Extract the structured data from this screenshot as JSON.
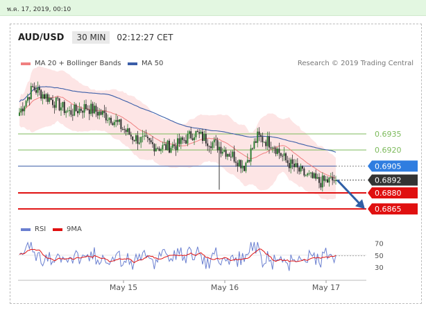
{
  "date_bar": {
    "text": "พ.ค. 17, 2019, 00:10"
  },
  "header": {
    "pair": "AUD/USD",
    "timeframe": "30 MIN",
    "time": "02:12:27 CET"
  },
  "legend": {
    "ma20": "MA 20 + Bollinger Bands",
    "ma50": "MA 50",
    "research": "Research © 2019 Trading Central"
  },
  "rsi_legend": {
    "rsi": "RSI",
    "ma9": "9MA"
  },
  "colors": {
    "up": "#2e7d32",
    "down": "#333333",
    "ma20": "#f08080",
    "band": "#fde0e0",
    "ma50": "#3b5ea8",
    "support": "#e01010",
    "green_level": "#7cba5b",
    "rsi": "#6a7fd0",
    "rsi_ma": "#e01010",
    "arrow": "#2f5fa6"
  },
  "chart_data": [
    {
      "type": "candlestick",
      "title": "AUD/USD",
      "ylim": [
        0.6858,
        0.699
      ],
      "x_ticks": [
        "May 15",
        "May 16",
        "May 17"
      ],
      "levels": [
        {
          "label": "0.6935",
          "value": 0.6935,
          "style": "green"
        },
        {
          "label": "0.6920",
          "value": 0.692,
          "style": "green"
        },
        {
          "label": "0.6905",
          "value": 0.6905,
          "style": "blue"
        },
        {
          "label": "0.6892",
          "value": 0.6892,
          "style": "current"
        },
        {
          "label": "0.6880",
          "value": 0.688,
          "style": "red"
        },
        {
          "label": "0.6865",
          "value": 0.6865,
          "style": "red"
        }
      ],
      "projection": {
        "from": 0.6892,
        "to": 0.6865
      }
    },
    {
      "type": "line",
      "series": [
        {
          "name": "RSI"
        },
        {
          "name": "9MA"
        }
      ],
      "ylim": [
        15,
        80
      ],
      "y_ticks": [
        70,
        50,
        30
      ]
    }
  ]
}
